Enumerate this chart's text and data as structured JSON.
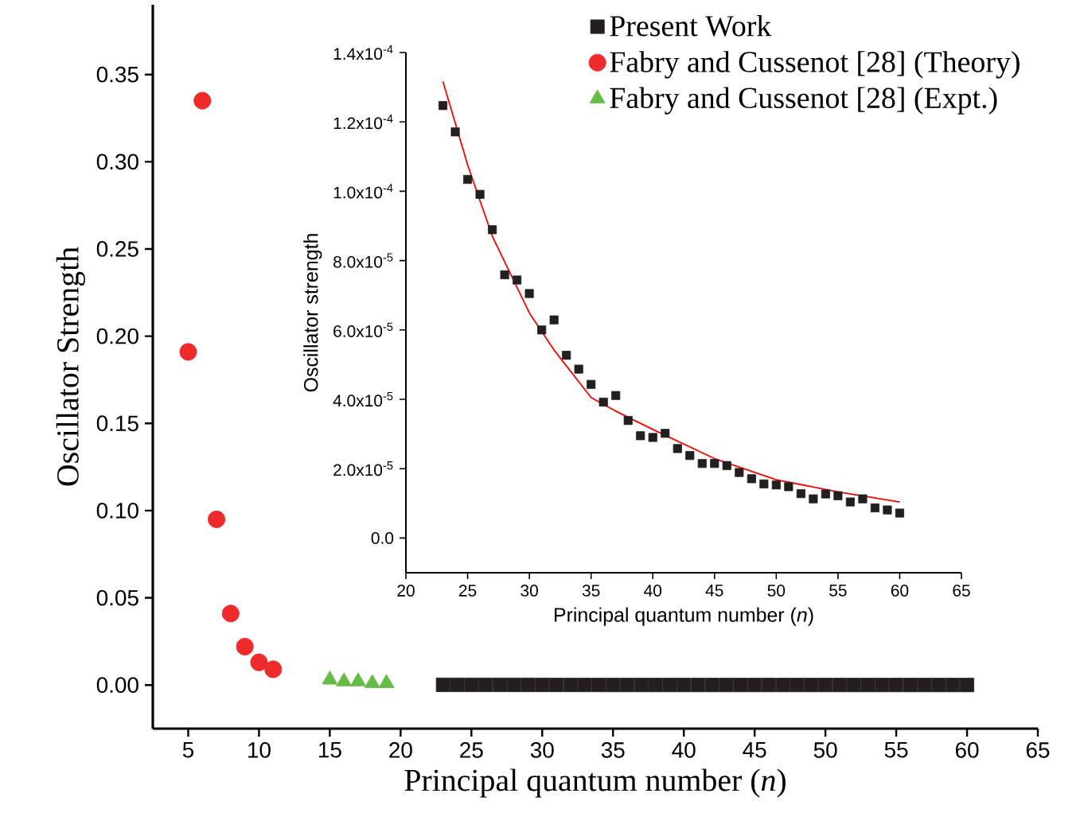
{
  "chart_data": [
    {
      "type": "scatter",
      "xlabel": "Principal quantum number (*n*)",
      "ylabel": "Oscillator Strength",
      "xlim": [
        2.5,
        65
      ],
      "ylim": [
        -0.025,
        0.39
      ],
      "xticks": [
        5,
        10,
        15,
        20,
        25,
        30,
        35,
        40,
        45,
        50,
        55,
        60,
        65
      ],
      "yticks": [
        {
          "value": 0,
          "label": "0.00"
        },
        {
          "value": 0.05,
          "label": "0.05"
        },
        {
          "value": 0.1,
          "label": "0.10"
        },
        {
          "value": 0.15,
          "label": "0.15"
        },
        {
          "value": 0.2,
          "label": "0.20"
        },
        {
          "value": 0.25,
          "label": "0.25"
        },
        {
          "value": 0.3,
          "label": "0.30"
        },
        {
          "value": 0.35,
          "label": "0.35"
        }
      ],
      "legend": "top right",
      "series": [
        {
          "name": "Present Work",
          "color": "#231f20",
          "marker": "square",
          "x": [
            23,
            24,
            25,
            26,
            27,
            28,
            29,
            30,
            31,
            32,
            33,
            34,
            35,
            36,
            37,
            38,
            39,
            40,
            41,
            42,
            43,
            44,
            45,
            46,
            47,
            48,
            49,
            50,
            51,
            52,
            53,
            54,
            55,
            56,
            57,
            58,
            59,
            60
          ],
          "values": [
            0.0001247,
            0.0001171,
            0.0001034,
            9.91e-05,
            8.89e-05,
            7.59e-05,
            7.44e-05,
            7.05e-05,
            6e-05,
            6.29e-05,
            5.27e-05,
            4.87e-05,
            4.43e-05,
            3.92e-05,
            4.11e-05,
            3.39e-05,
            2.95e-05,
            2.9e-05,
            3.02e-05,
            2.58e-05,
            2.38e-05,
            2.15e-05,
            2.15e-05,
            2.09e-05,
            1.89e-05,
            1.71e-05,
            1.56e-05,
            1.53e-05,
            1.48e-05,
            1.28e-05,
            1.13e-05,
            1.27e-05,
            1.22e-05,
            1.04e-05,
            1.13e-05,
            8.7e-06,
            8.1e-06,
            7.2e-06
          ]
        },
        {
          "name": "Fabry and Cussenot  [28] (Theory)",
          "color": "#ee2a2a",
          "marker": "circle",
          "x": [
            5,
            6,
            7,
            8,
            9,
            10,
            11
          ],
          "values": [
            0.191,
            0.335,
            0.095,
            0.041,
            0.022,
            0.013,
            0.009
          ]
        },
        {
          "name": "Fabry and Cussenot  [28] (Expt.)",
          "color": "#66bb44",
          "marker": "triangle",
          "x": [
            15,
            16,
            17,
            18,
            19
          ],
          "values": [
            0.003,
            0.002,
            0.002,
            0.001,
            0.001
          ]
        }
      ]
    },
    {
      "type": "scatter",
      "xlabel": "Principal quantum number (*n*)",
      "ylabel": "Oscillator strength",
      "xlim": [
        20,
        65
      ],
      "ylim": [
        -1e-05,
        0.00014
      ],
      "xticks": [
        20,
        25,
        30,
        35,
        40,
        45,
        50,
        55,
        60,
        65
      ],
      "yticks": [
        {
          "value": 0,
          "label": "0.0"
        },
        {
          "value": 2e-05,
          "label": "2.0x10$^{-5}$"
        },
        {
          "value": 4e-05,
          "label": "4.0x10$^{-5}$"
        },
        {
          "value": 6e-05,
          "label": "6.0x10$^{-5}$"
        },
        {
          "value": 8e-05,
          "label": "8.0x10$^{-5}$"
        },
        {
          "value": 0.0001,
          "label": "1.0x10$^{-4}$"
        },
        {
          "value": 0.00012,
          "label": "1.2x10$^{-4}$"
        },
        {
          "value": 0.00014,
          "label": "1.4x10$^{-4}$"
        }
      ],
      "series": [
        {
          "color": "#231f20",
          "marker": "square",
          "x": [
            23,
            24,
            25,
            26,
            27,
            28,
            29,
            30,
            31,
            32,
            33,
            34,
            35,
            36,
            37,
            38,
            39,
            40,
            41,
            42,
            43,
            44,
            45,
            46,
            47,
            48,
            49,
            50,
            51,
            52,
            53,
            54,
            55,
            56,
            57,
            58,
            59,
            60
          ],
          "values": [
            0.0001247,
            0.0001171,
            0.0001034,
            9.91e-05,
            8.89e-05,
            7.59e-05,
            7.44e-05,
            7.05e-05,
            6e-05,
            6.29e-05,
            5.27e-05,
            4.87e-05,
            4.43e-05,
            3.92e-05,
            4.11e-05,
            3.39e-05,
            2.95e-05,
            2.9e-05,
            3.02e-05,
            2.58e-05,
            2.38e-05,
            2.15e-05,
            2.15e-05,
            2.09e-05,
            1.89e-05,
            1.71e-05,
            1.56e-05,
            1.53e-05,
            1.48e-05,
            1.28e-05,
            1.13e-05,
            1.27e-05,
            1.22e-05,
            1.04e-05,
            1.13e-05,
            8.7e-06,
            8.1e-06,
            7.2e-06
          ]
        },
        {
          "type": "line",
          "color": "#ff0000",
          "marker": "none",
          "x": [
            23,
            25,
            27,
            30,
            32,
            35,
            37,
            40,
            45,
            50,
            55,
            60
          ],
          "values": [
            0.0001316,
            0.0001076,
            8.7e-05,
            6.49e-05,
            5.42e-05,
            4.05e-05,
            3.66e-05,
            3.13e-05,
            2.29e-05,
            1.68e-05,
            1.33e-05,
            1.04e-05
          ]
        }
      ]
    }
  ]
}
